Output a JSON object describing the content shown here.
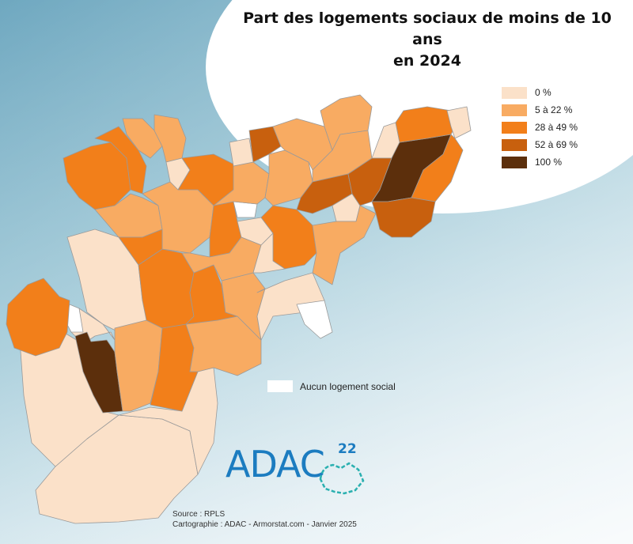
{
  "title_line1": "Part des logements sociaux de moins de 10 ans",
  "title_line2": "en 2024",
  "legend": [
    {
      "label": "0 %",
      "color": "#fbe1c9"
    },
    {
      "label": "5 à 22 %",
      "color": "#f8ab62"
    },
    {
      "label": "28 à 49 %",
      "color": "#f27f1a"
    },
    {
      "label": "52 à 69 %",
      "color": "#c8600e"
    },
    {
      "label": "100 %",
      "color": "#5c2f0c"
    }
  ],
  "no_social_label": "Aucun logement social",
  "no_social_color": "#ffffff",
  "source": "Source : RPLS",
  "credits": "Cartographie : ADAC - Armorstat.com - Janvier 2025",
  "logo_text": "ADAC",
  "logo_sup": "22"
}
